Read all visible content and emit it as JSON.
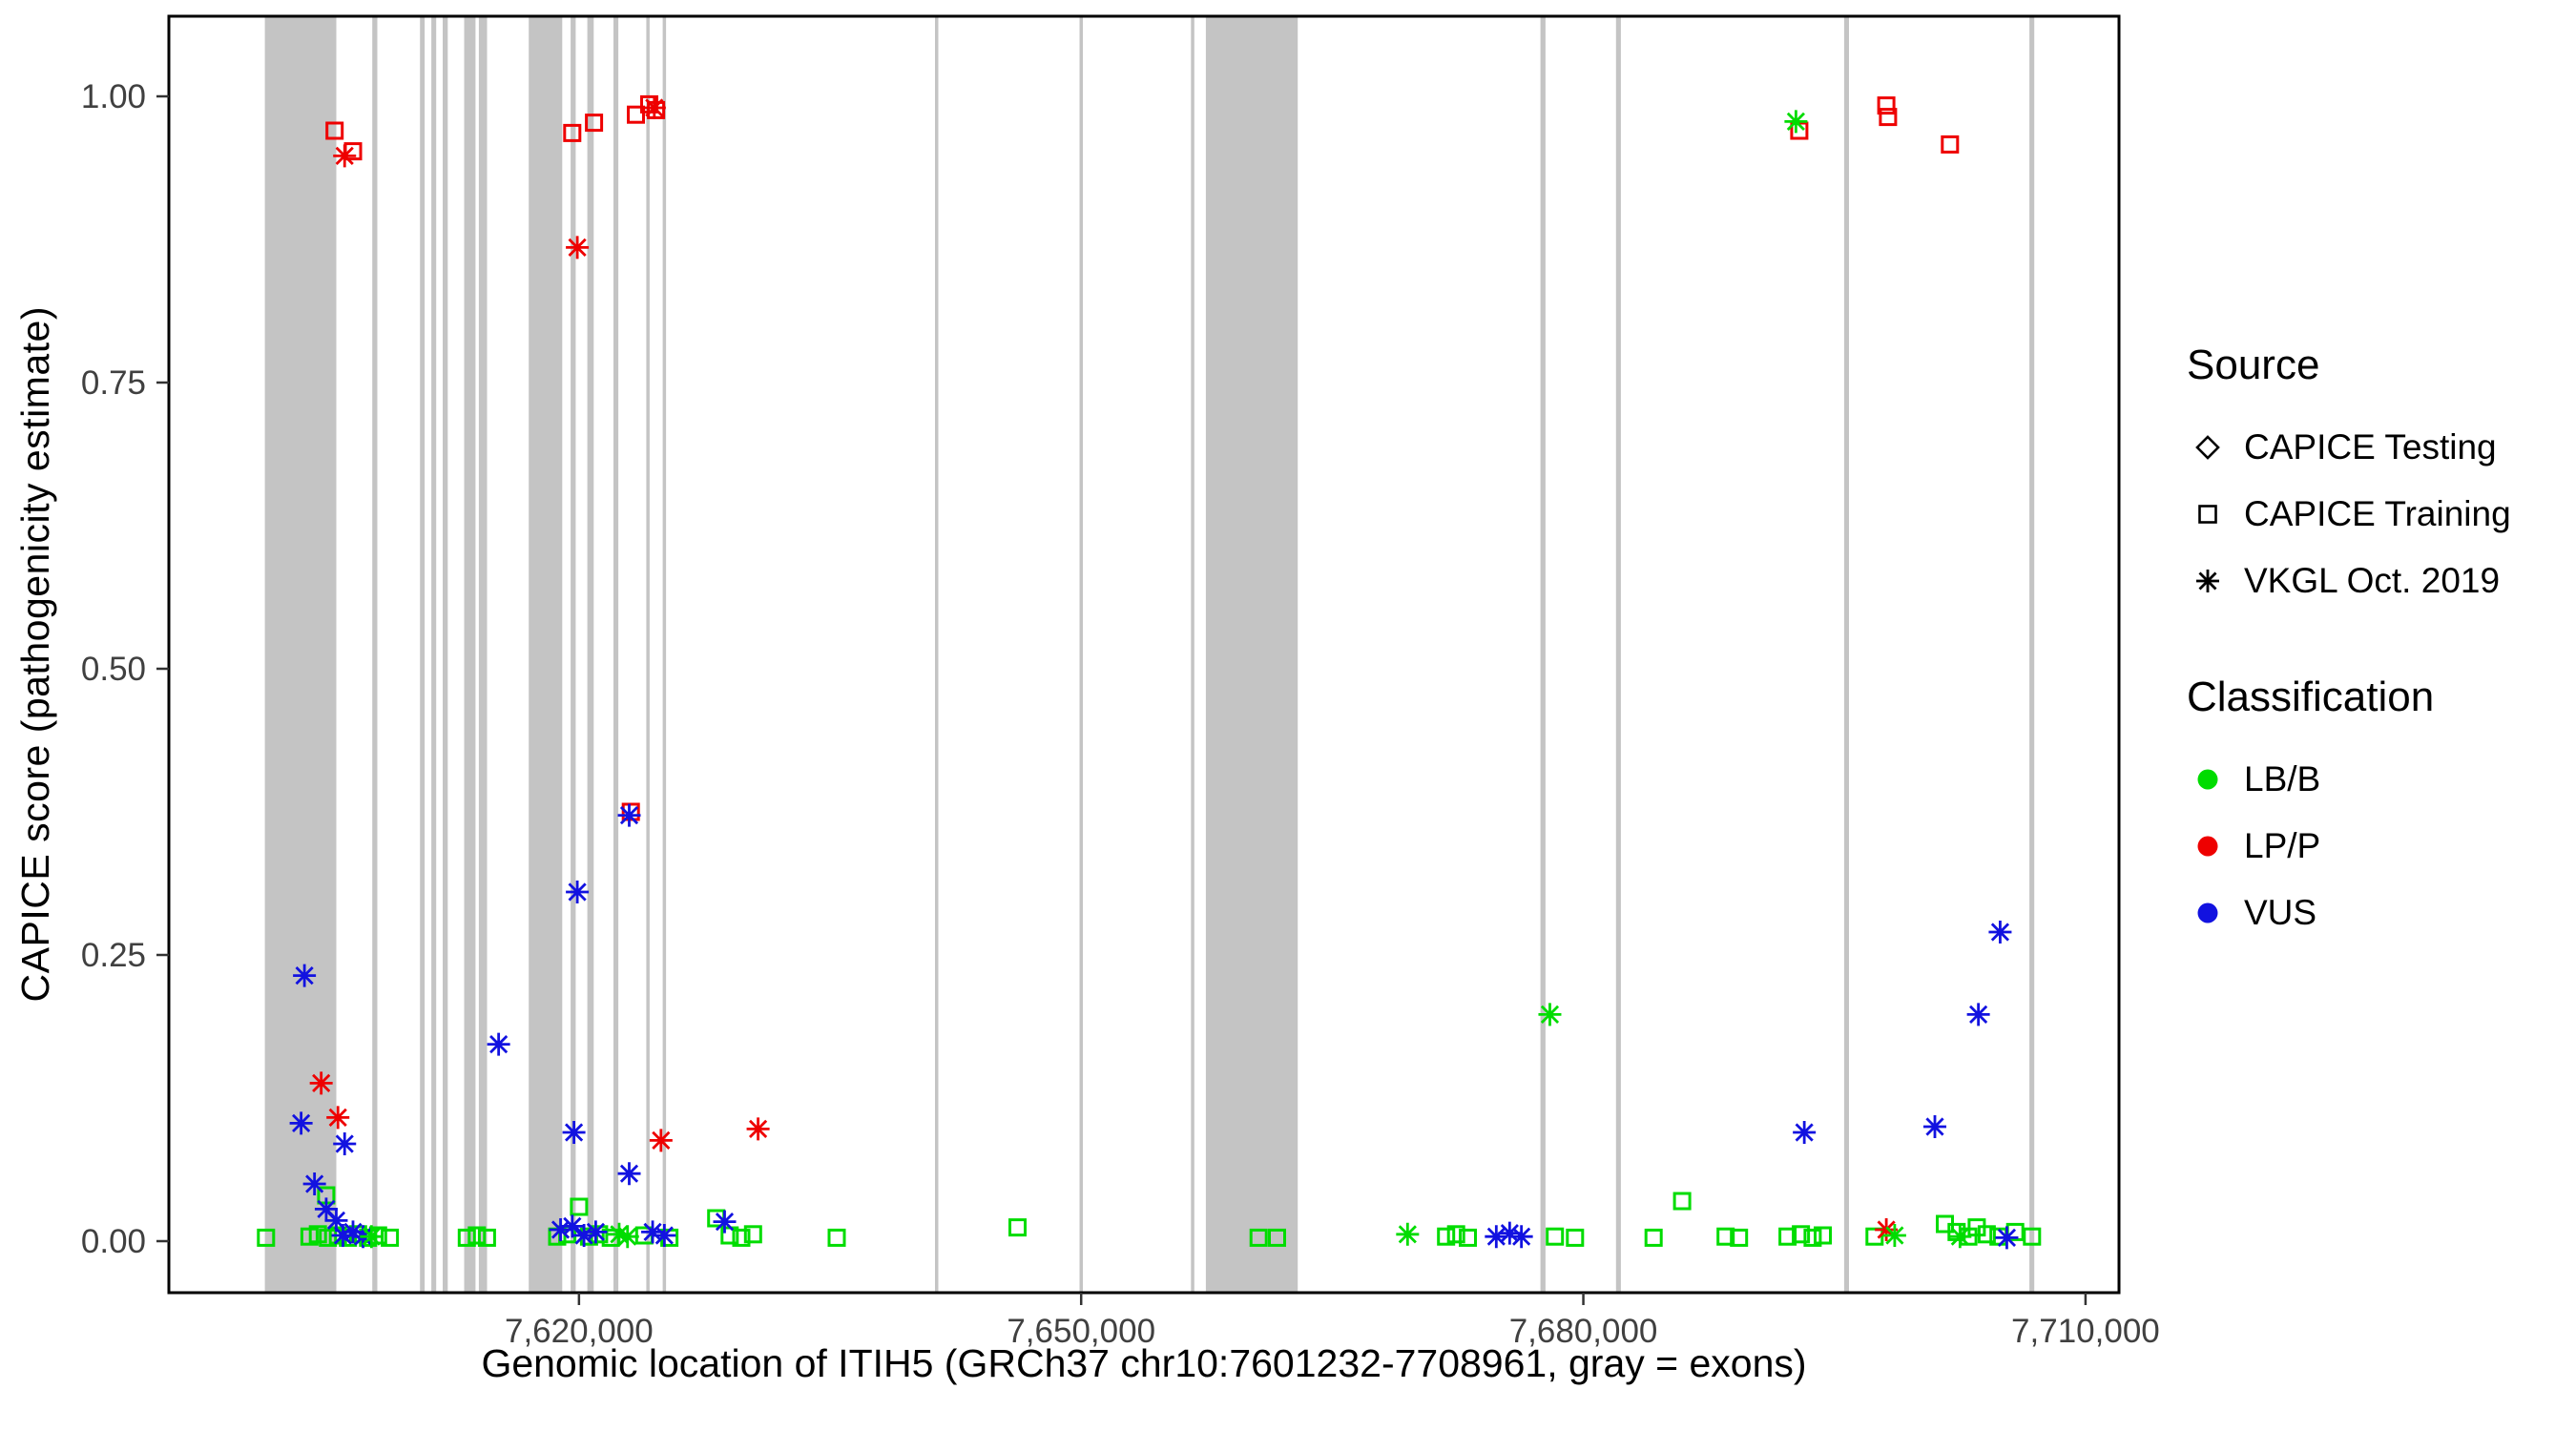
{
  "figure": {
    "background": "#ffffff",
    "panel_border_color": "#000000",
    "exon_color": "#c4c4c4",
    "tick_color": "#333333",
    "tick_label_color": "#404040"
  },
  "chart_data": {
    "type": "scatter",
    "title": "",
    "xlabel": "Genomic location of ITIH5 (GRCh37 chr10:7601232-7708961, gray = exons)",
    "ylabel": "CAPICE score (pathogenicity estimate)",
    "xlim": [
      7595500,
      7712000
    ],
    "ylim": [
      -0.045,
      1.07
    ],
    "grid": false,
    "legend_position": "right",
    "x_ticks": [
      {
        "value": 7620000,
        "label": "7,620,000"
      },
      {
        "value": 7650000,
        "label": "7,650,000"
      },
      {
        "value": 7680000,
        "label": "7,680,000"
      },
      {
        "value": 7710000,
        "label": "7,710,000"
      }
    ],
    "y_ticks": [
      {
        "value": 0.0,
        "label": "0.00"
      },
      {
        "value": 0.25,
        "label": "0.25"
      },
      {
        "value": 0.5,
        "label": "0.50"
      },
      {
        "value": 0.75,
        "label": "0.75"
      },
      {
        "value": 1.0,
        "label": "1.00"
      }
    ],
    "class_colors": {
      "LB/B": "#00dc00",
      "LP/P": "#ee0000",
      "VUS": "#1212e0"
    },
    "source_shapes": {
      "testing": "diamond",
      "training": "square",
      "vkgl": "asterisk"
    },
    "exons": [
      [
        7601232,
        7605500
      ],
      [
        7607650,
        7607950
      ],
      [
        7610500,
        7610780
      ],
      [
        7611180,
        7611470
      ],
      [
        7611860,
        7612160
      ],
      [
        7613140,
        7613820
      ],
      [
        7614020,
        7614510
      ],
      [
        7617000,
        7619000
      ],
      [
        7619500,
        7619800
      ],
      [
        7620500,
        7620880
      ],
      [
        7622060,
        7622350
      ],
      [
        7624020,
        7624220
      ],
      [
        7625000,
        7625200
      ],
      [
        7641270,
        7641470
      ],
      [
        7649900,
        7650100
      ],
      [
        7656560,
        7656760
      ],
      [
        7657450,
        7662940
      ],
      [
        7677440,
        7677740
      ],
      [
        7681950,
        7682240
      ],
      [
        7695580,
        7695870
      ],
      [
        7706650,
        7706940
      ]
    ],
    "points": [
      {
        "x": 7605400,
        "y": 0.97,
        "source": "training",
        "cls": "LP/P"
      },
      {
        "x": 7606500,
        "y": 0.952,
        "source": "training",
        "cls": "LP/P"
      },
      {
        "x": 7619600,
        "y": 0.968,
        "source": "training",
        "cls": "LP/P"
      },
      {
        "x": 7620900,
        "y": 0.977,
        "source": "training",
        "cls": "LP/P"
      },
      {
        "x": 7623400,
        "y": 0.984,
        "source": "training",
        "cls": "LP/P"
      },
      {
        "x": 7624200,
        "y": 0.993,
        "source": "training",
        "cls": "LP/P"
      },
      {
        "x": 7624600,
        "y": 0.988,
        "source": "training",
        "cls": "LP/P"
      },
      {
        "x": 7692900,
        "y": 0.97,
        "source": "training",
        "cls": "LP/P"
      },
      {
        "x": 7698100,
        "y": 0.992,
        "source": "training",
        "cls": "LP/P"
      },
      {
        "x": 7698200,
        "y": 0.982,
        "source": "training",
        "cls": "LP/P"
      },
      {
        "x": 7701900,
        "y": 0.958,
        "source": "training",
        "cls": "LP/P"
      },
      {
        "x": 7623100,
        "y": 0.375,
        "source": "training",
        "cls": "LP/P"
      },
      {
        "x": 7606000,
        "y": 0.948,
        "source": "vkgl",
        "cls": "LP/P"
      },
      {
        "x": 7619900,
        "y": 0.868,
        "source": "vkgl",
        "cls": "LP/P"
      },
      {
        "x": 7624500,
        "y": 0.99,
        "source": "vkgl",
        "cls": "LP/P"
      },
      {
        "x": 7604600,
        "y": 0.138,
        "source": "vkgl",
        "cls": "LP/P"
      },
      {
        "x": 7605600,
        "y": 0.108,
        "source": "vkgl",
        "cls": "LP/P"
      },
      {
        "x": 7624900,
        "y": 0.088,
        "source": "vkgl",
        "cls": "LP/P"
      },
      {
        "x": 7630700,
        "y": 0.098,
        "source": "vkgl",
        "cls": "LP/P"
      },
      {
        "x": 7698100,
        "y": 0.01,
        "source": "vkgl",
        "cls": "LP/P"
      },
      {
        "x": 7603600,
        "y": 0.232,
        "source": "vkgl",
        "cls": "VUS"
      },
      {
        "x": 7603400,
        "y": 0.103,
        "source": "vkgl",
        "cls": "VUS"
      },
      {
        "x": 7606000,
        "y": 0.085,
        "source": "vkgl",
        "cls": "VUS"
      },
      {
        "x": 7604200,
        "y": 0.05,
        "source": "vkgl",
        "cls": "VUS"
      },
      {
        "x": 7604900,
        "y": 0.028,
        "source": "vkgl",
        "cls": "VUS"
      },
      {
        "x": 7605500,
        "y": 0.018,
        "source": "vkgl",
        "cls": "VUS"
      },
      {
        "x": 7605900,
        "y": 0.005,
        "source": "vkgl",
        "cls": "VUS"
      },
      {
        "x": 7606500,
        "y": 0.008,
        "source": "vkgl",
        "cls": "VUS"
      },
      {
        "x": 7607100,
        "y": 0.004,
        "source": "vkgl",
        "cls": "VUS"
      },
      {
        "x": 7615200,
        "y": 0.172,
        "source": "vkgl",
        "cls": "VUS"
      },
      {
        "x": 7619900,
        "y": 0.305,
        "source": "vkgl",
        "cls": "VUS"
      },
      {
        "x": 7619700,
        "y": 0.095,
        "source": "vkgl",
        "cls": "VUS"
      },
      {
        "x": 7623000,
        "y": 0.372,
        "source": "vkgl",
        "cls": "VUS"
      },
      {
        "x": 7623000,
        "y": 0.059,
        "source": "vkgl",
        "cls": "VUS"
      },
      {
        "x": 7618900,
        "y": 0.01,
        "source": "vkgl",
        "cls": "VUS"
      },
      {
        "x": 7619600,
        "y": 0.013,
        "source": "vkgl",
        "cls": "VUS"
      },
      {
        "x": 7620300,
        "y": 0.005,
        "source": "vkgl",
        "cls": "VUS"
      },
      {
        "x": 7621000,
        "y": 0.008,
        "source": "vkgl",
        "cls": "VUS"
      },
      {
        "x": 7624400,
        "y": 0.008,
        "source": "vkgl",
        "cls": "VUS"
      },
      {
        "x": 7625100,
        "y": 0.005,
        "source": "vkgl",
        "cls": "VUS"
      },
      {
        "x": 7628700,
        "y": 0.017,
        "source": "vkgl",
        "cls": "VUS"
      },
      {
        "x": 7674800,
        "y": 0.004,
        "source": "vkgl",
        "cls": "VUS"
      },
      {
        "x": 7675600,
        "y": 0.007,
        "source": "vkgl",
        "cls": "VUS"
      },
      {
        "x": 7676300,
        "y": 0.004,
        "source": "vkgl",
        "cls": "VUS"
      },
      {
        "x": 7693200,
        "y": 0.095,
        "source": "vkgl",
        "cls": "VUS"
      },
      {
        "x": 7701000,
        "y": 0.1,
        "source": "vkgl",
        "cls": "VUS"
      },
      {
        "x": 7703600,
        "y": 0.198,
        "source": "vkgl",
        "cls": "VUS"
      },
      {
        "x": 7704900,
        "y": 0.27,
        "source": "vkgl",
        "cls": "VUS"
      },
      {
        "x": 7705300,
        "y": 0.003,
        "source": "vkgl",
        "cls": "VUS"
      },
      {
        "x": 7692700,
        "y": 0.978,
        "source": "vkgl",
        "cls": "LB/B"
      },
      {
        "x": 7678000,
        "y": 0.198,
        "source": "vkgl",
        "cls": "LB/B"
      },
      {
        "x": 7622400,
        "y": 0.006,
        "source": "vkgl",
        "cls": "LB/B"
      },
      {
        "x": 7622900,
        "y": 0.004,
        "source": "vkgl",
        "cls": "LB/B"
      },
      {
        "x": 7607600,
        "y": 0.004,
        "source": "vkgl",
        "cls": "LB/B"
      },
      {
        "x": 7669500,
        "y": 0.006,
        "source": "vkgl",
        "cls": "LB/B"
      },
      {
        "x": 7698600,
        "y": 0.005,
        "source": "vkgl",
        "cls": "LB/B"
      },
      {
        "x": 7702500,
        "y": 0.004,
        "source": "vkgl",
        "cls": "LB/B"
      },
      {
        "x": 7604900,
        "y": 0.04,
        "source": "training",
        "cls": "LB/B"
      },
      {
        "x": 7601300,
        "y": 0.003,
        "source": "training",
        "cls": "LB/B"
      },
      {
        "x": 7603900,
        "y": 0.004,
        "source": "training",
        "cls": "LB/B"
      },
      {
        "x": 7604400,
        "y": 0.006,
        "source": "training",
        "cls": "LB/B"
      },
      {
        "x": 7605000,
        "y": 0.003,
        "source": "training",
        "cls": "LB/B"
      },
      {
        "x": 7605600,
        "y": 0.005,
        "source": "training",
        "cls": "LB/B"
      },
      {
        "x": 7606200,
        "y": 0.003,
        "source": "training",
        "cls": "LB/B"
      },
      {
        "x": 7606800,
        "y": 0.006,
        "source": "training",
        "cls": "LB/B"
      },
      {
        "x": 7607400,
        "y": 0.003,
        "source": "training",
        "cls": "LB/B"
      },
      {
        "x": 7608000,
        "y": 0.005,
        "source": "training",
        "cls": "LB/B"
      },
      {
        "x": 7608700,
        "y": 0.003,
        "source": "training",
        "cls": "LB/B"
      },
      {
        "x": 7613300,
        "y": 0.003,
        "source": "training",
        "cls": "LB/B"
      },
      {
        "x": 7613900,
        "y": 0.005,
        "source": "training",
        "cls": "LB/B"
      },
      {
        "x": 7614500,
        "y": 0.003,
        "source": "training",
        "cls": "LB/B"
      },
      {
        "x": 7618700,
        "y": 0.004,
        "source": "training",
        "cls": "LB/B"
      },
      {
        "x": 7619300,
        "y": 0.006,
        "source": "training",
        "cls": "LB/B"
      },
      {
        "x": 7620000,
        "y": 0.03,
        "source": "training",
        "cls": "LB/B"
      },
      {
        "x": 7620600,
        "y": 0.004,
        "source": "training",
        "cls": "LB/B"
      },
      {
        "x": 7621200,
        "y": 0.006,
        "source": "training",
        "cls": "LB/B"
      },
      {
        "x": 7621900,
        "y": 0.003,
        "source": "training",
        "cls": "LB/B"
      },
      {
        "x": 7623900,
        "y": 0.005,
        "source": "training",
        "cls": "LB/B"
      },
      {
        "x": 7625400,
        "y": 0.003,
        "source": "training",
        "cls": "LB/B"
      },
      {
        "x": 7628200,
        "y": 0.02,
        "source": "training",
        "cls": "LB/B"
      },
      {
        "x": 7629000,
        "y": 0.005,
        "source": "training",
        "cls": "LB/B"
      },
      {
        "x": 7629700,
        "y": 0.003,
        "source": "training",
        "cls": "LB/B"
      },
      {
        "x": 7630400,
        "y": 0.006,
        "source": "training",
        "cls": "LB/B"
      },
      {
        "x": 7635400,
        "y": 0.003,
        "source": "training",
        "cls": "LB/B"
      },
      {
        "x": 7646200,
        "y": 0.012,
        "source": "training",
        "cls": "LB/B"
      },
      {
        "x": 7660600,
        "y": 0.003,
        "source": "training",
        "cls": "LB/B"
      },
      {
        "x": 7661700,
        "y": 0.003,
        "source": "training",
        "cls": "LB/B"
      },
      {
        "x": 7671800,
        "y": 0.004,
        "source": "training",
        "cls": "LB/B"
      },
      {
        "x": 7672400,
        "y": 0.006,
        "source": "training",
        "cls": "LB/B"
      },
      {
        "x": 7673100,
        "y": 0.003,
        "source": "training",
        "cls": "LB/B"
      },
      {
        "x": 7678300,
        "y": 0.004,
        "source": "training",
        "cls": "LB/B"
      },
      {
        "x": 7679500,
        "y": 0.003,
        "source": "training",
        "cls": "LB/B"
      },
      {
        "x": 7684200,
        "y": 0.003,
        "source": "training",
        "cls": "LB/B"
      },
      {
        "x": 7685900,
        "y": 0.035,
        "source": "training",
        "cls": "LB/B"
      },
      {
        "x": 7688500,
        "y": 0.004,
        "source": "training",
        "cls": "LB/B"
      },
      {
        "x": 7689300,
        "y": 0.003,
        "source": "training",
        "cls": "LB/B"
      },
      {
        "x": 7692200,
        "y": 0.004,
        "source": "training",
        "cls": "LB/B"
      },
      {
        "x": 7693000,
        "y": 0.006,
        "source": "training",
        "cls": "LB/B"
      },
      {
        "x": 7693700,
        "y": 0.003,
        "source": "training",
        "cls": "LB/B"
      },
      {
        "x": 7694300,
        "y": 0.005,
        "source": "training",
        "cls": "LB/B"
      },
      {
        "x": 7697400,
        "y": 0.004,
        "source": "training",
        "cls": "LB/B"
      },
      {
        "x": 7701600,
        "y": 0.015,
        "source": "training",
        "cls": "LB/B"
      },
      {
        "x": 7702300,
        "y": 0.008,
        "source": "training",
        "cls": "LB/B"
      },
      {
        "x": 7703000,
        "y": 0.004,
        "source": "training",
        "cls": "LB/B"
      },
      {
        "x": 7703500,
        "y": 0.012,
        "source": "training",
        "cls": "LB/B"
      },
      {
        "x": 7704100,
        "y": 0.006,
        "source": "training",
        "cls": "LB/B"
      },
      {
        "x": 7704800,
        "y": 0.004,
        "source": "training",
        "cls": "LB/B"
      },
      {
        "x": 7705800,
        "y": 0.008,
        "source": "training",
        "cls": "LB/B"
      },
      {
        "x": 7706800,
        "y": 0.004,
        "source": "training",
        "cls": "LB/B"
      }
    ]
  },
  "legend": {
    "source_title": "Source",
    "source_items": [
      {
        "label": "CAPICE Testing",
        "marker": "diamond"
      },
      {
        "label": "CAPICE Training",
        "marker": "square"
      },
      {
        "label": "VKGL Oct. 2019",
        "marker": "asterisk"
      }
    ],
    "classification_title": "Classification",
    "classification_items": [
      {
        "label": "LB/B",
        "color": "#00dc00"
      },
      {
        "label": "LP/P",
        "color": "#ee0000"
      },
      {
        "label": "VUS",
        "color": "#1212e0"
      }
    ]
  }
}
